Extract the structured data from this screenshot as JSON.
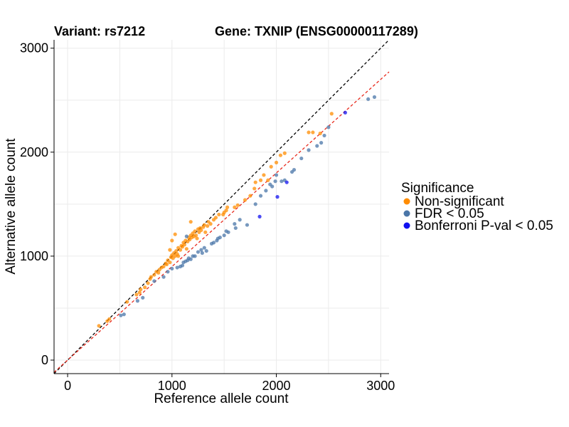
{
  "chart_data": {
    "type": "scatter",
    "title_left": "Variant: rs7212",
    "title_right": "Gene: TXNIP (ENSG00000117289)",
    "xlabel": "Reference allele count",
    "ylabel": "Alternative allele count",
    "xlim": [
      -130,
      3080
    ],
    "ylim": [
      -130,
      3080
    ],
    "xticks": [
      0,
      1000,
      2000,
      3000
    ],
    "yticks": [
      0,
      1000,
      2000,
      3000
    ],
    "grid": true,
    "legend_title": "Significance",
    "legend_position": "right",
    "reference_lines": [
      {
        "name": "identity",
        "slope": 1.0,
        "intercept": 0,
        "color": "#000000",
        "dash": "dashed"
      },
      {
        "name": "fit",
        "slope": 0.9,
        "intercept": 0,
        "color": "#e8291c",
        "dash": "dashed"
      }
    ],
    "series": [
      {
        "name": "Non-significant",
        "color": "#ff8c00",
        "points": [
          [
            300,
            330
          ],
          [
            380,
            375
          ],
          [
            400,
            395
          ],
          [
            570,
            560
          ],
          [
            660,
            630
          ],
          [
            690,
            650
          ],
          [
            700,
            680
          ],
          [
            740,
            700
          ],
          [
            770,
            740
          ],
          [
            790,
            780
          ],
          [
            800,
            800
          ],
          [
            830,
            820
          ],
          [
            850,
            850
          ],
          [
            870,
            840
          ],
          [
            880,
            870
          ],
          [
            900,
            890
          ],
          [
            920,
            900
          ],
          [
            940,
            930
          ],
          [
            950,
            920
          ],
          [
            960,
            960
          ],
          [
            980,
            940
          ],
          [
            990,
            990
          ],
          [
            1000,
            1010
          ],
          [
            1010,
            980
          ],
          [
            1020,
            1030
          ],
          [
            1030,
            1000
          ],
          [
            1040,
            1050
          ],
          [
            1050,
            1020
          ],
          [
            1060,
            1080
          ],
          [
            1080,
            1060
          ],
          [
            1090,
            1100
          ],
          [
            1100,
            1090
          ],
          [
            1110,
            1130
          ],
          [
            1120,
            1110
          ],
          [
            1130,
            1150
          ],
          [
            1150,
            1140
          ],
          [
            1160,
            1180
          ],
          [
            1170,
            1160
          ],
          [
            1180,
            1200
          ],
          [
            1190,
            1180
          ],
          [
            1200,
            1220
          ],
          [
            1210,
            1190
          ],
          [
            1220,
            1240
          ],
          [
            1230,
            1200
          ],
          [
            1240,
            1170
          ],
          [
            1250,
            1260
          ],
          [
            1260,
            1230
          ],
          [
            1270,
            1270
          ],
          [
            1280,
            1250
          ],
          [
            1300,
            1280
          ],
          [
            1310,
            1300
          ],
          [
            1320,
            1230
          ],
          [
            1340,
            1290
          ],
          [
            1350,
            1330
          ],
          [
            1370,
            1310
          ],
          [
            1400,
            1350
          ],
          [
            1420,
            1370
          ],
          [
            1450,
            1400
          ],
          [
            1490,
            1400
          ],
          [
            1500,
            1420
          ],
          [
            1520,
            1440
          ],
          [
            1530,
            1470
          ],
          [
            1600,
            1470
          ],
          [
            1630,
            1490
          ],
          [
            1700,
            1540
          ],
          [
            1750,
            1580
          ],
          [
            1790,
            1650
          ],
          [
            1800,
            1710
          ],
          [
            1850,
            1730
          ],
          [
            1880,
            1780
          ],
          [
            1920,
            1730
          ],
          [
            1950,
            1860
          ],
          [
            2000,
            1900
          ],
          [
            2040,
            1970
          ],
          [
            2080,
            1990
          ],
          [
            2310,
            2190
          ],
          [
            2350,
            2190
          ],
          [
            2420,
            2180
          ],
          [
            2530,
            2370
          ],
          [
            980,
            1060
          ],
          [
            1000,
            1150
          ],
          [
            1030,
            1210
          ],
          [
            1180,
            1330
          ],
          [
            1060,
            1000
          ],
          [
            1140,
            1070
          ]
        ]
      },
      {
        "name": "FDR < 0.05",
        "color": "#4a76a8",
        "points": [
          [
            510,
            430
          ],
          [
            540,
            440
          ],
          [
            670,
            570
          ],
          [
            720,
            600
          ],
          [
            830,
            760
          ],
          [
            920,
            800
          ],
          [
            960,
            850
          ],
          [
            1000,
            880
          ],
          [
            1050,
            890
          ],
          [
            1080,
            900
          ],
          [
            1100,
            910
          ],
          [
            1110,
            940
          ],
          [
            1130,
            950
          ],
          [
            1150,
            960
          ],
          [
            1160,
            980
          ],
          [
            1180,
            970
          ],
          [
            1200,
            1000
          ],
          [
            1220,
            1000
          ],
          [
            1250,
            1040
          ],
          [
            1280,
            1060
          ],
          [
            1290,
            1030
          ],
          [
            1310,
            1080
          ],
          [
            1330,
            1050
          ],
          [
            1380,
            1120
          ],
          [
            1400,
            1130
          ],
          [
            1430,
            1150
          ],
          [
            1440,
            1170
          ],
          [
            1460,
            1180
          ],
          [
            1500,
            1200
          ],
          [
            1520,
            1240
          ],
          [
            1540,
            1230
          ],
          [
            1600,
            1310
          ],
          [
            1610,
            1270
          ],
          [
            1650,
            1350
          ],
          [
            1720,
            1300
          ],
          [
            1800,
            1500
          ],
          [
            1850,
            1580
          ],
          [
            1900,
            1630
          ],
          [
            1940,
            1690
          ],
          [
            1990,
            1720
          ],
          [
            2000,
            1780
          ],
          [
            2050,
            1720
          ],
          [
            2080,
            1730
          ],
          [
            2150,
            1810
          ],
          [
            2170,
            1830
          ],
          [
            2240,
            1940
          ],
          [
            2310,
            2020
          ],
          [
            2390,
            2060
          ],
          [
            2430,
            2090
          ],
          [
            2460,
            2160
          ],
          [
            2500,
            2240
          ],
          [
            2880,
            2510
          ],
          [
            2940,
            2530
          ],
          [
            1960,
            1670
          ],
          [
            1140,
            1190
          ]
        ]
      },
      {
        "name": "Bonferroni P-val < 0.05",
        "color": "#1010f0",
        "points": [
          [
            1840,
            1380
          ],
          [
            2010,
            1570
          ],
          [
            2100,
            1710
          ],
          [
            2660,
            2380
          ]
        ]
      }
    ]
  }
}
